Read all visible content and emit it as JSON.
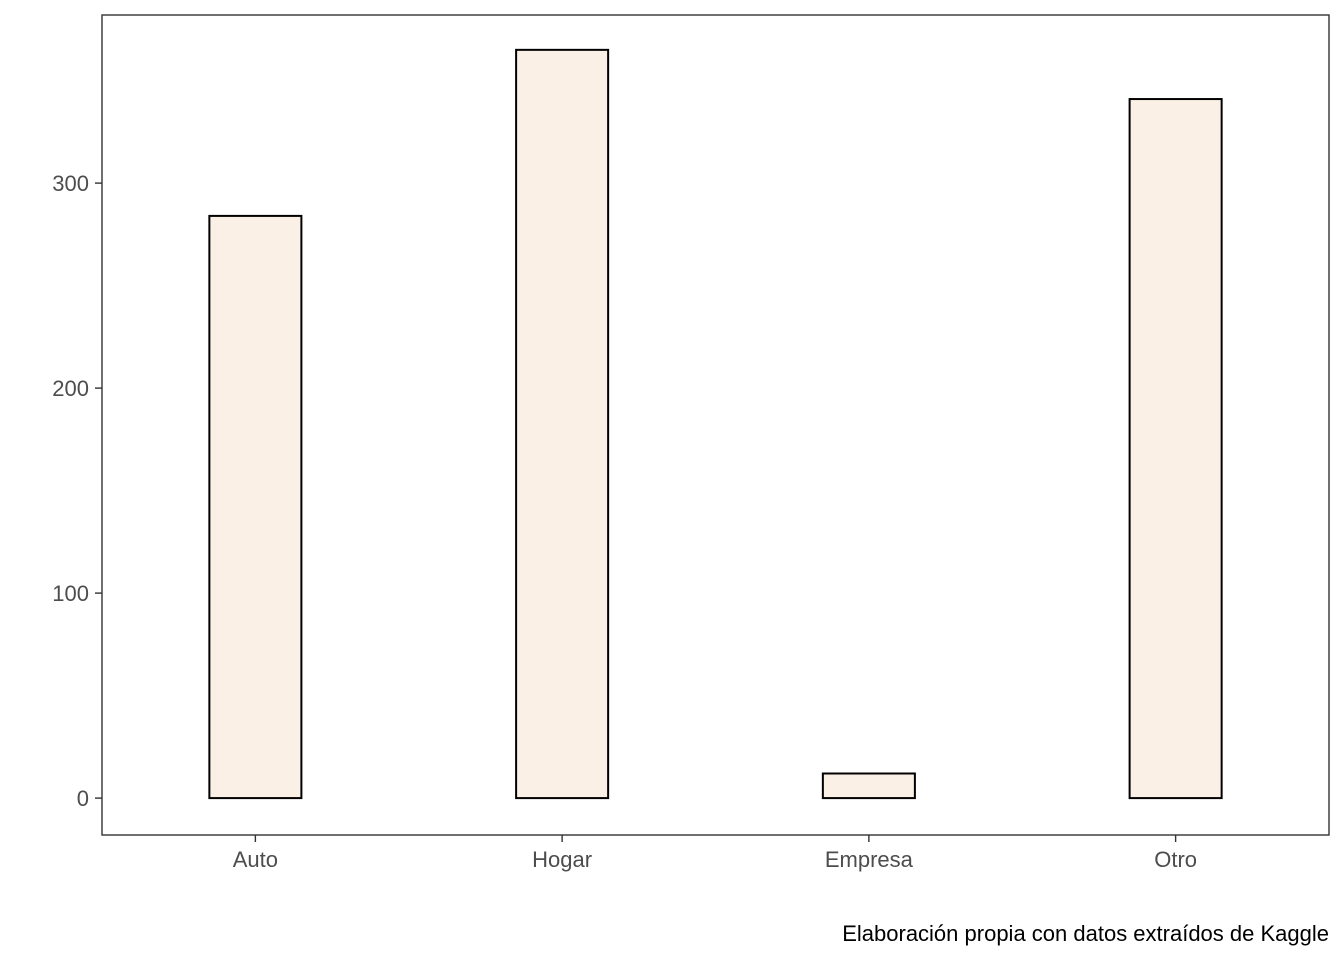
{
  "chart_data": {
    "type": "bar",
    "title": "",
    "xlabel": "",
    "ylabel": "",
    "categories": [
      "Auto",
      "Hogar",
      "Empresa",
      "Otro"
    ],
    "values": [
      284,
      365,
      12,
      341
    ],
    "ylim": [
      -18,
      382
    ],
    "yticks": [
      0,
      100,
      200,
      300
    ],
    "grid": false,
    "legend": "none",
    "caption": "Elaboración propia con datos extraídos de Kaggle",
    "colors": {
      "bar_fill": "#FAF0E6",
      "bar_stroke": "#000000",
      "panel_border": "#333333",
      "tick_text": "#4d4d4d",
      "tick_line": "#333333",
      "caption_text": "#000000"
    }
  }
}
